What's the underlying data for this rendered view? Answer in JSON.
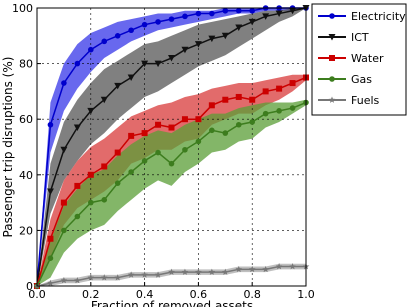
{
  "chart_data": {
    "type": "line",
    "xlabel": "Fraction of removed assets",
    "ylabel": "Passenger trip disruptions (%)",
    "x": [
      0,
      0.05,
      0.1,
      0.15,
      0.2,
      0.25,
      0.3,
      0.35,
      0.4,
      0.45,
      0.5,
      0.55,
      0.6,
      0.65,
      0.7,
      0.75,
      0.8,
      0.85,
      0.9,
      0.95,
      1.0
    ],
    "xlim": [
      0,
      1
    ],
    "xticks": [
      {
        "value": 0,
        "label": "0.0"
      },
      {
        "value": 0.2,
        "label": "0.2"
      },
      {
        "value": 0.4,
        "label": "0.4"
      },
      {
        "value": 0.6,
        "label": "0.6"
      },
      {
        "value": 0.8,
        "label": "0.8"
      },
      {
        "value": 1,
        "label": "1.0"
      }
    ],
    "ylim": [
      0,
      100
    ],
    "yticks": [
      0,
      20,
      40,
      60,
      80,
      100
    ],
    "grid": true,
    "legend": "outside-right",
    "series": [
      {
        "name": "Electricity",
        "color": "#0000cc",
        "band_color": "#3535e8",
        "marker": "circle",
        "values": [
          0,
          58,
          73,
          80,
          85,
          88,
          90,
          92,
          94,
          95,
          96,
          97,
          98,
          98,
          99,
          99,
          99,
          100,
          100,
          100,
          100
        ],
        "upper": [
          0,
          66,
          80,
          87,
          91,
          93,
          95,
          96,
          97,
          98,
          98,
          99,
          99,
          99,
          100,
          100,
          100,
          100,
          100,
          100,
          100
        ],
        "lower": [
          0,
          48,
          63,
          71,
          77,
          82,
          85,
          88,
          90,
          92,
          93,
          94,
          95,
          96,
          97,
          98,
          98,
          99,
          99,
          99,
          100
        ]
      },
      {
        "name": "ICT",
        "color": "#111111",
        "band_color": "#555555",
        "marker": "triangle",
        "values": [
          0,
          34,
          49,
          57,
          63,
          67,
          72,
          75,
          80,
          80,
          82,
          85,
          87,
          89,
          90,
          93,
          95,
          97,
          98,
          99,
          100
        ],
        "upper": [
          0,
          44,
          59,
          67,
          73,
          78,
          81,
          84,
          87,
          88,
          90,
          92,
          94,
          95,
          96,
          97,
          98,
          99,
          99,
          100,
          100
        ],
        "lower": [
          0,
          26,
          38,
          45,
          51,
          55,
          60,
          64,
          68,
          70,
          73,
          76,
          79,
          81,
          83,
          86,
          89,
          92,
          95,
          97,
          100
        ]
      },
      {
        "name": "Water",
        "color": "#cc0000",
        "band_color": "#d83a3a",
        "marker": "square",
        "values": [
          0,
          17,
          30,
          36,
          40,
          43,
          48,
          54,
          55,
          58,
          57,
          60,
          60,
          65,
          67,
          68,
          67,
          70,
          71,
          73,
          75
        ],
        "upper": [
          0,
          24,
          38,
          45,
          50,
          53,
          57,
          61,
          63,
          65,
          66,
          68,
          69,
          71,
          72,
          73,
          73,
          74,
          75,
          76,
          76
        ],
        "lower": [
          0,
          10,
          22,
          28,
          31,
          34,
          38,
          44,
          46,
          49,
          49,
          52,
          53,
          58,
          60,
          62,
          62,
          65,
          67,
          70,
          74
        ]
      },
      {
        "name": "Gas",
        "color": "#3d7d1e",
        "band_color": "#5a9e35",
        "marker": "circle",
        "values": [
          0,
          10,
          20,
          25,
          30,
          31,
          37,
          41,
          45,
          48,
          44,
          49,
          52,
          56,
          55,
          58,
          59,
          62,
          63,
          64,
          66
        ],
        "upper": [
          0,
          16,
          29,
          35,
          40,
          42,
          47,
          51,
          54,
          56,
          55,
          58,
          60,
          62,
          62,
          64,
          65,
          66,
          66,
          66,
          67
        ],
        "lower": [
          0,
          3,
          12,
          17,
          20,
          22,
          27,
          31,
          35,
          38,
          36,
          41,
          44,
          48,
          49,
          52,
          53,
          57,
          59,
          62,
          65
        ]
      },
      {
        "name": "Fuels",
        "color": "#777777",
        "band_color": "#aaaaaa",
        "marker": "star",
        "values": [
          0,
          1,
          2,
          2,
          3,
          3,
          3,
          4,
          4,
          4,
          5,
          5,
          5,
          5,
          5,
          6,
          6,
          6,
          7,
          7,
          7
        ],
        "upper": [
          0,
          2,
          3,
          3,
          4,
          4,
          4,
          5,
          5,
          5,
          6,
          6,
          6,
          6,
          6,
          7,
          7,
          7,
          8,
          8,
          8
        ],
        "lower": [
          0,
          0,
          1,
          1,
          2,
          2,
          2,
          3,
          3,
          3,
          4,
          4,
          4,
          4,
          4,
          5,
          5,
          5,
          6,
          6,
          6
        ]
      }
    ]
  }
}
